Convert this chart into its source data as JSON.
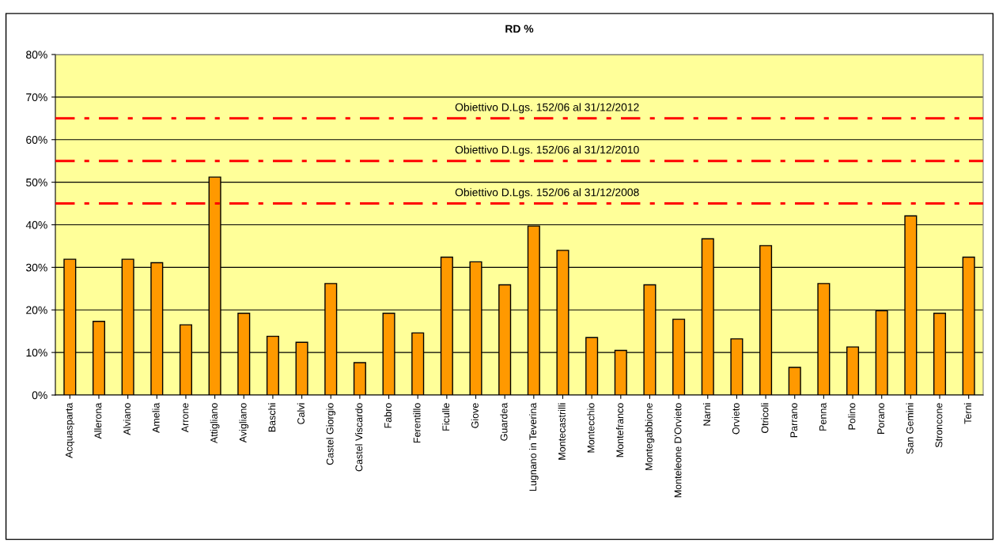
{
  "chart_data": {
    "type": "bar",
    "title": "RD %",
    "categories": [
      "Acquasparta",
      "Allerona",
      "Alviano",
      "Amelia",
      "Arrone",
      "Attigliano",
      "Avigliano",
      "Baschi",
      "Calvi",
      "Castel Giorgio",
      "Castel Viscardo",
      "Fabro",
      "Ferentillo",
      "Ficulle",
      "Giove",
      "Guardea",
      "Lugnano in Teverina",
      "Montecastrilli",
      "Montecchio",
      "Montefranco",
      "Montegabbione",
      "Monteleone D'Orvieto",
      "Narni",
      "Orvieto",
      "Otricoli",
      "Parrano",
      "Penna",
      "Polino",
      "Porano",
      "San Gemini",
      "Stroncone",
      "Terni"
    ],
    "values": [
      31.9,
      17.3,
      31.9,
      31.1,
      16.5,
      51.2,
      19.2,
      13.8,
      12.4,
      26.2,
      7.6,
      19.2,
      14.6,
      32.4,
      31.3,
      25.9,
      39.7,
      34.0,
      13.5,
      10.5,
      25.9,
      17.8,
      36.7,
      13.2,
      35.1,
      6.5,
      26.2,
      11.3,
      19.8,
      42.1,
      19.2,
      32.4
    ],
    "color": "#ff9900",
    "ylim": [
      0,
      80
    ],
    "yticks": [
      {
        "value": 0,
        "label": "0%"
      },
      {
        "value": 10,
        "label": "10%"
      },
      {
        "value": 20,
        "label": "20%"
      },
      {
        "value": 30,
        "label": "30%"
      },
      {
        "value": 40,
        "label": "40%"
      },
      {
        "value": 50,
        "label": "50%"
      },
      {
        "value": 60,
        "label": "60%"
      },
      {
        "value": 70,
        "label": "70%"
      },
      {
        "value": 80,
        "label": "80%"
      }
    ],
    "grid": "y",
    "ref_lines": [
      {
        "axis": "y",
        "value": 45,
        "label": "Obiettivo D.Lgs. 152/06 al 31/12/2008",
        "color": "#ff0000",
        "line_style": "dashdot"
      },
      {
        "axis": "y",
        "value": 55,
        "label": "Obiettivo D.Lgs. 152/06 al 31/12/2010",
        "color": "#ff0000",
        "line_style": "dashdot"
      },
      {
        "axis": "y",
        "value": 65,
        "label": "Obiettivo D.Lgs. 152/06 al 31/12/2012",
        "color": "#ff0000",
        "line_style": "dashdot"
      }
    ]
  }
}
